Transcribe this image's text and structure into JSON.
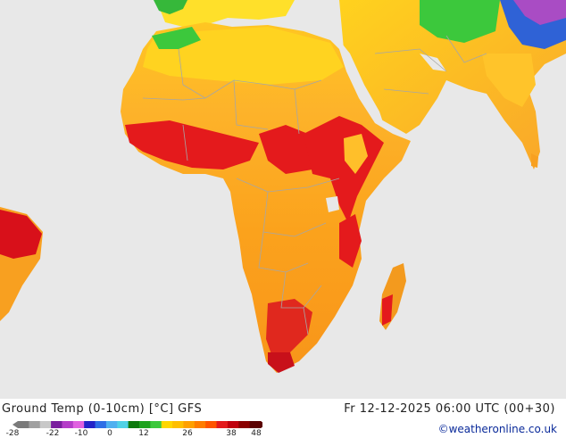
{
  "map": {
    "source_title": "Ground Temp (0-10cm) [°C] GFS",
    "valid_time": "Fr 12-12-2025 06:00 UTC (00+30)",
    "credit": "©weatheronline.co.uk",
    "colors": {
      "ocean": "#e8e8e8",
      "hot_orange": "#f7a21b",
      "red": "#e41a1c",
      "dark_red": "#b8000d",
      "yellow": "#ffd700",
      "green": "#2ca02c",
      "border": "#a6a6a6"
    }
  },
  "legend": {
    "tick_labels": [
      "-28",
      "-22",
      "-10",
      "0",
      "12",
      "26",
      "38",
      "48"
    ],
    "colors": [
      "#7a7a7a",
      "#a0a0a0",
      "#c8c8c8",
      "#7a1f9e",
      "#b43cc8",
      "#e060e0",
      "#2323c8",
      "#2e6ee6",
      "#4fb0f0",
      "#50d2e6",
      "#0e7a0e",
      "#1ea21e",
      "#3cc83c",
      "#ffd700",
      "#ffbf00",
      "#ffa000",
      "#ff7d00",
      "#ff5500",
      "#e41a1c",
      "#c0000d",
      "#8b0000",
      "#5a0000"
    ]
  }
}
